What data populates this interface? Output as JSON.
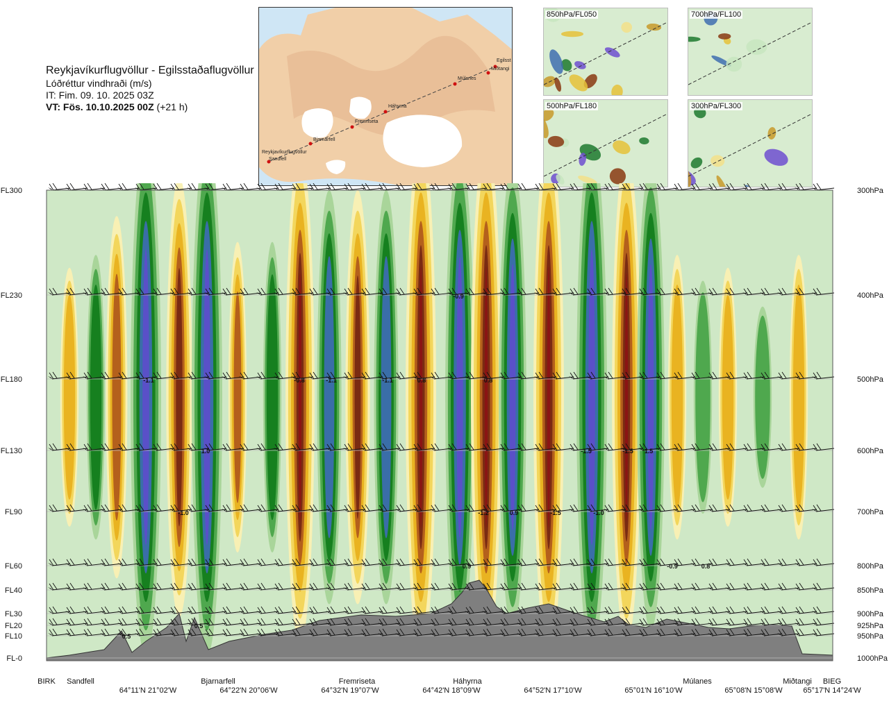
{
  "header": {
    "title": "Reykjavíkurflugvöllur - Egilsstaðaflugvöllur",
    "parameter": "Lóðréttur vindhraði (m/s)",
    "initial_time": "IT: Fim. 09. 10. 2025 03Z",
    "valid_label": "VT: Fös. 10.10.2025 00Z",
    "valid_offset": "(+21 h)"
  },
  "map": {
    "places": [
      "Reykjavíkurflugvöllur",
      "Sandfell",
      "Bjarnarfell",
      "Fremriseta",
      "Háhyrna",
      "Múlanes",
      "Miðtangi",
      "Egilsst"
    ]
  },
  "thumbnails": [
    {
      "label": "850hPa/FL050"
    },
    {
      "label": "700hPa/FL100"
    },
    {
      "label": "500hPa/FL180"
    },
    {
      "label": "300hPa/FL300"
    }
  ],
  "chart_data": {
    "type": "heatmap",
    "title": "Lóðréttur vindhraði (m/s)",
    "y_left_levels": [
      "FL300",
      "FL230",
      "FL180",
      "FL130",
      "FL90",
      "FL60",
      "FL40",
      "FL30",
      "FL20",
      "FL10",
      "FL-0"
    ],
    "y_right_levels": [
      "300hPa",
      "400hPa",
      "500hPa",
      "600hPa",
      "700hPa",
      "800hPa",
      "850hPa",
      "900hPa",
      "925hPa",
      "950hPa",
      "1000hPa"
    ],
    "x_points": [
      "BIRK",
      "Sandfell",
      "Bjarnarfell",
      "Fremriseta",
      "Háhyrna",
      "Múlanes",
      "Miðtangi",
      "BIEG"
    ],
    "x_coords": [
      "64°11'N 21°02'W",
      "64°22'N 20°06'W",
      "64°32'N 19°07'W",
      "64°42'N 18°09'W",
      "64°52'N 17°10'W",
      "65°01'N 16°10'W",
      "65°08'N 15°08'W",
      "65°17'N 14°24'W"
    ],
    "contour_labels": [
      "-1.1",
      "1.0",
      "-1.0",
      "-0.8",
      "-1.1",
      "-1.1",
      "0.8",
      "0.8",
      "-0.9",
      "-1.5",
      "-1.5",
      "1.5",
      "-1.0",
      "-1.2",
      "0.9",
      "-1.5",
      "0.9",
      "-0.9",
      "0.8",
      "0.5",
      "0.5"
    ],
    "legend": "none",
    "grid": true
  }
}
